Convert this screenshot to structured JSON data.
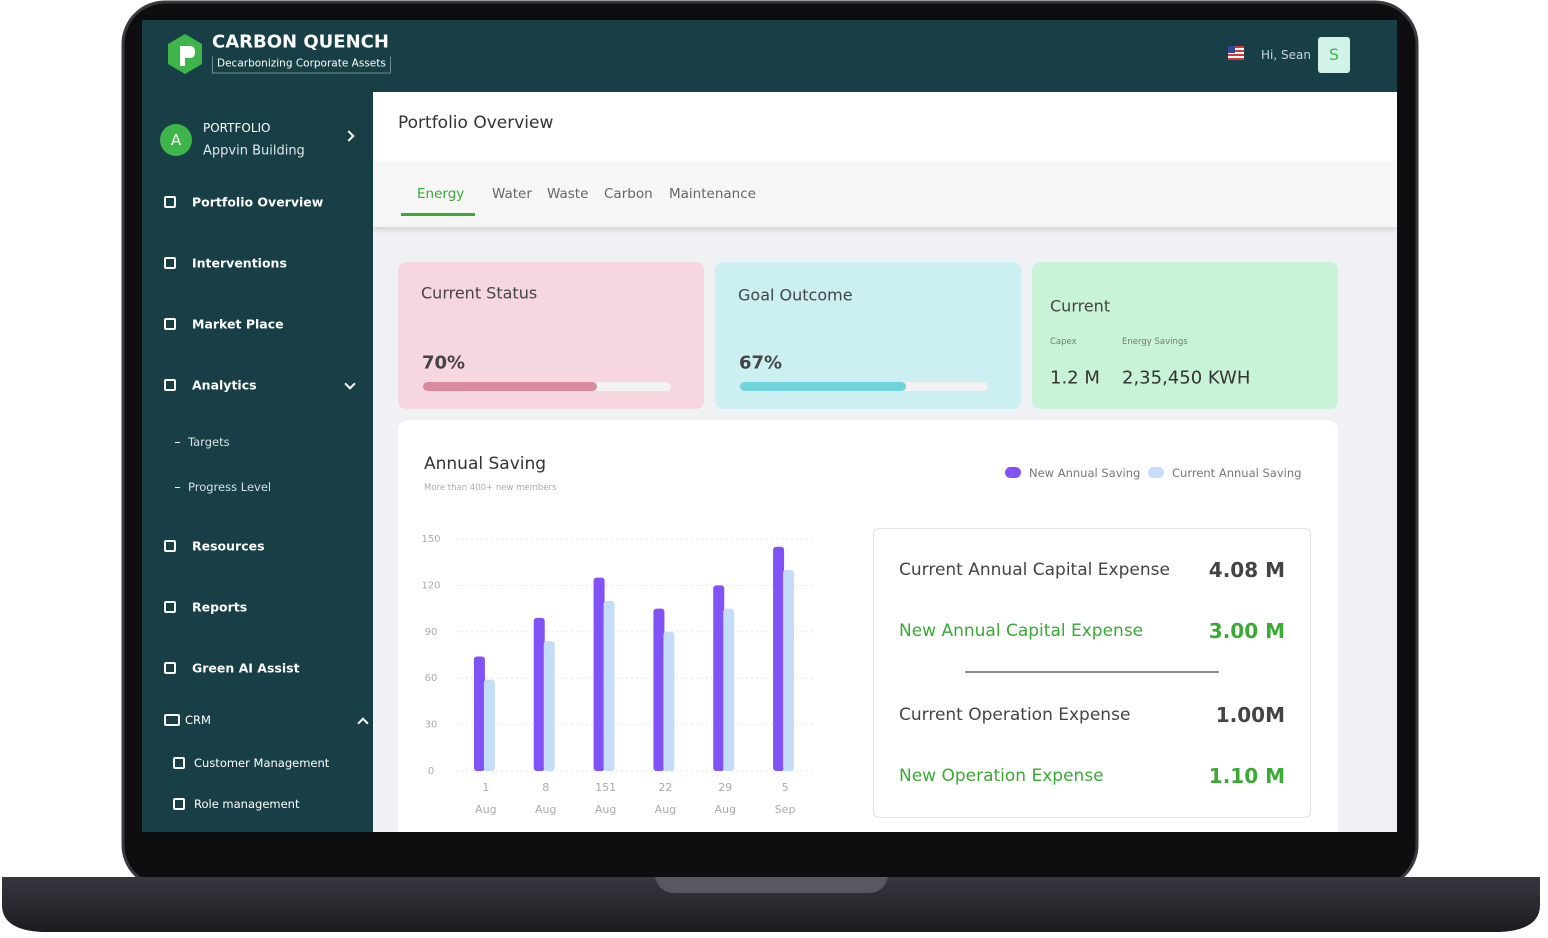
{
  "header": {
    "brand": "CARBON QUENCH",
    "tagline": "Decarbonizing Corporate Assets",
    "greeting": "Hi, Sean",
    "avatar": "S"
  },
  "sidebar": {
    "portfolio": {
      "avatar": "A",
      "label": "PORTFOLIO",
      "name": "Appvin Building"
    },
    "items": [
      "Portfolio Overview",
      "Interventions",
      "Market Place",
      "Analytics",
      "Targets",
      "Progress Level",
      "Resources",
      "Reports",
      "Green AI Assist",
      "CRM",
      "Customer Management",
      "Role management"
    ]
  },
  "page_title": "Portfolio Overview",
  "tabs": [
    "Energy",
    "Water",
    "Waste",
    "Carbon",
    "Maintenance"
  ],
  "cards": [
    {
      "title": "Current Status",
      "progress": 70,
      "progress_label": "70%"
    },
    {
      "title": "Goal Outcome",
      "progress": 67,
      "progress_label": "67%"
    }
  ],
  "current": {
    "title": "Current",
    "metrics": [
      {
        "label": "Capex",
        "value": "1.2 M"
      },
      {
        "label": "Energy Savings",
        "value": "2,35,450 KWH"
      }
    ]
  },
  "chart_data": {
    "type": "bar",
    "title": "Annual Saving",
    "subtitle": "More than 400+ new members",
    "categories": [
      "1 Aug",
      "8 Aug",
      "151 Aug",
      "22 Aug",
      "29 Aug",
      "5 Sep"
    ],
    "series": [
      {
        "name": "New Annual Saving",
        "color": "#8152f5",
        "values": [
          74,
          99,
          125,
          105,
          120,
          145
        ]
      },
      {
        "name": "Current Annual Saving",
        "color": "#c6ddfa",
        "values": [
          59,
          84,
          110,
          90,
          105,
          130
        ]
      }
    ],
    "ylim": [
      0,
      150
    ],
    "yticks": [
      0,
      30,
      60,
      90,
      120,
      150
    ],
    "grid": true
  },
  "expenses": [
    {
      "label": "Current Annual Capital Expense",
      "value": "4.08 M",
      "highlight": false
    },
    {
      "label": "New Annual Capital Expense",
      "value": "3.00 M",
      "highlight": true
    },
    {
      "label": "Current Operation Expense",
      "value": "1.00M",
      "highlight": false
    },
    {
      "label": "New Operation Expense",
      "value": "1.10 M",
      "highlight": true
    }
  ]
}
